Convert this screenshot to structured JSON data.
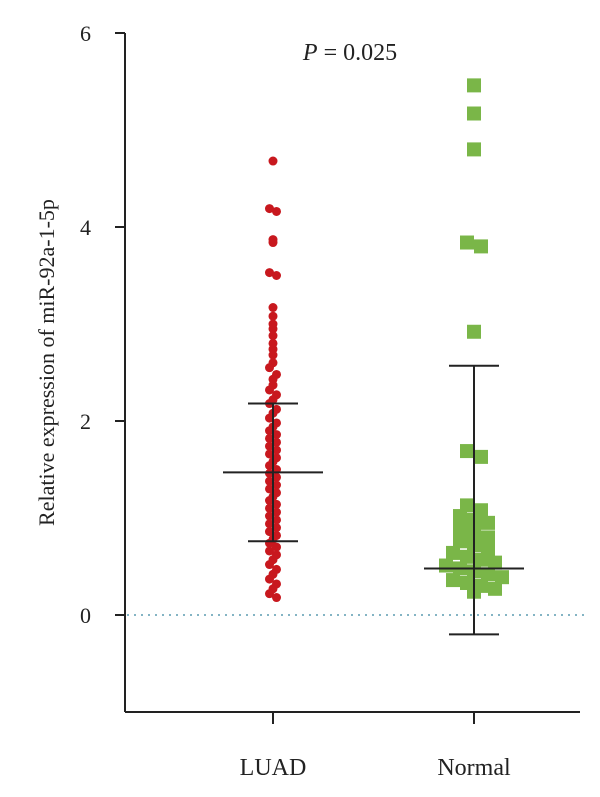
{
  "chart_data": {
    "type": "scatter",
    "subtype": "dot-plot-with-mean-and-sd",
    "ylabel": "Relative expression of miR-92a-1-5p",
    "ylim": [
      -1,
      6
    ],
    "yticks": [
      0,
      2,
      4,
      6
    ],
    "reference_line": {
      "y": 0,
      "style": "dotted",
      "color": "#5b9bb0"
    },
    "annotation": {
      "p_label": "P",
      "p_text": " = 0.025"
    },
    "categories": [
      "LUAD",
      "Normal"
    ],
    "series": [
      {
        "name": "LUAD",
        "color": "#c8181e",
        "marker": "circle",
        "mean": 1.47,
        "sd_upper": 2.18,
        "sd_lower": 0.76,
        "points": [
          4.68,
          4.19,
          4.16,
          3.87,
          3.84,
          3.53,
          3.5,
          3.17,
          3.08,
          3.0,
          2.95,
          2.88,
          2.8,
          2.74,
          2.68,
          2.6,
          2.55,
          2.48,
          2.43,
          2.37,
          2.32,
          2.27,
          2.22,
          2.18,
          2.12,
          2.08,
          2.03,
          1.98,
          1.94,
          1.9,
          1.86,
          1.82,
          1.78,
          1.74,
          1.7,
          1.66,
          1.62,
          1.58,
          1.54,
          1.5,
          1.46,
          1.42,
          1.38,
          1.34,
          1.3,
          1.26,
          1.22,
          1.18,
          1.14,
          1.1,
          1.06,
          1.02,
          0.98,
          0.94,
          0.9,
          0.86,
          0.82,
          0.78,
          0.74,
          0.7,
          0.66,
          0.62,
          0.57,
          0.52,
          0.47,
          0.42,
          0.37,
          0.32,
          0.27,
          0.22,
          0.18
        ]
      },
      {
        "name": "Normal",
        "color": "#7ab648",
        "marker": "square",
        "mean": 0.48,
        "sd_upper": 2.57,
        "sd_lower": -0.2,
        "points": [
          5.46,
          5.17,
          4.8,
          3.84,
          3.8,
          2.92,
          1.69,
          1.63,
          1.13,
          1.08,
          1.02,
          0.98,
          0.95,
          0.9,
          0.85,
          0.8,
          0.76,
          0.72,
          0.68,
          0.64,
          0.6,
          0.57,
          0.54,
          0.51,
          0.48,
          0.45,
          0.42,
          0.39,
          0.36,
          0.33,
          0.3,
          0.27,
          0.24
        ]
      }
    ]
  }
}
